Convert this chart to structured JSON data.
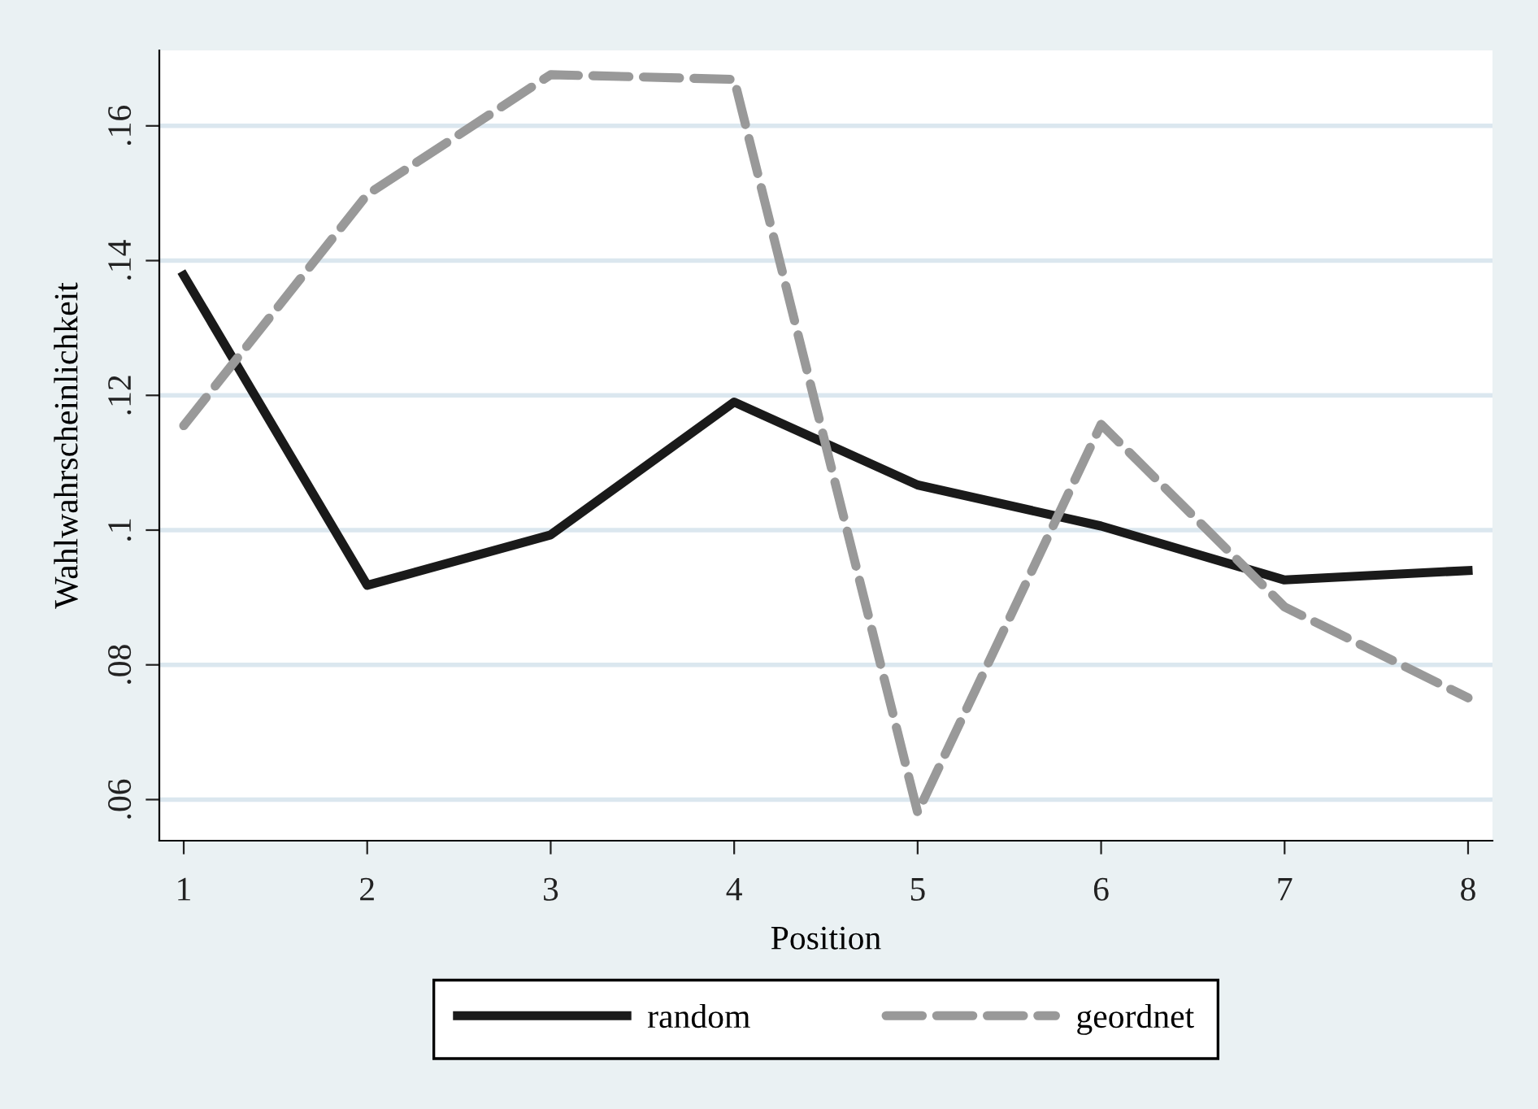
{
  "chart_data": {
    "type": "line",
    "xlabel": "Position",
    "ylabel": "Wahlwahrscheinlichkeit",
    "x": [
      1,
      2,
      3,
      4,
      5,
      6,
      7,
      8
    ],
    "series": [
      {
        "name": "random",
        "color": "#1a1a1a",
        "line_style": "solid",
        "values": [
          0.1378,
          0.0918,
          0.0993,
          0.119,
          0.1067,
          0.1006,
          0.0926,
          0.094
        ]
      },
      {
        "name": "geordnet",
        "color": "#999999",
        "line_style": "dashed",
        "values": [
          0.1155,
          0.1498,
          0.1676,
          0.1669,
          0.0581,
          0.1157,
          0.0886,
          0.0751
        ]
      }
    ],
    "xlim": [
      0.867,
      8.133
    ],
    "ylim": [
      0.0539,
      0.1712
    ],
    "xticks": [
      1,
      2,
      3,
      4,
      5,
      6,
      7,
      8
    ],
    "yticks": [
      {
        "value": 0.06,
        "label": ".06"
      },
      {
        "value": 0.08,
        "label": ".08"
      },
      {
        "value": 0.1,
        "label": ".1"
      },
      {
        "value": 0.12,
        "label": ".12"
      },
      {
        "value": 0.14,
        "label": ".14"
      },
      {
        "value": 0.16,
        "label": ".16"
      }
    ],
    "grid": "y",
    "legend": "bottom",
    "marker": "none"
  }
}
